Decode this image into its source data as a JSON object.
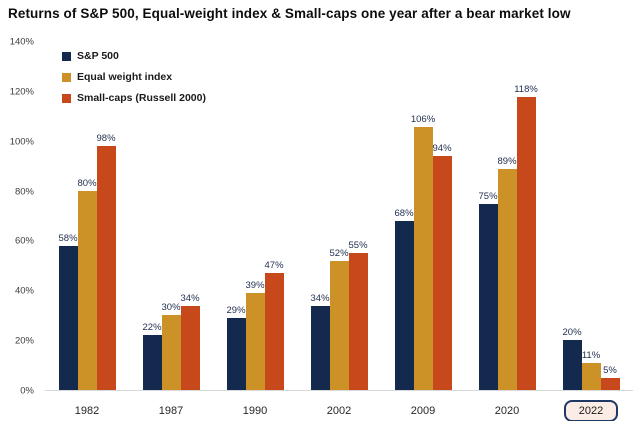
{
  "title": "Returns of S&P 500, Equal-weight index & Small-caps one year after a bear market low",
  "colors": {
    "sp500": "#14294e",
    "equal_weight": "#cc9228",
    "small_caps": "#c7481b",
    "highlight_border": "#1f3864",
    "highlight_fill": "#fbece5"
  },
  "chart_data": {
    "type": "bar",
    "title": "Returns of S&P 500, Equal-weight index & Small-caps one year after a bear market low",
    "categories": [
      "1982",
      "1987",
      "1990",
      "2002",
      "2009",
      "2020",
      "2022"
    ],
    "series": [
      {
        "name": "S&P 500",
        "color": "#14294e",
        "values": [
          58,
          22,
          29,
          34,
          68,
          75,
          20
        ]
      },
      {
        "name": "Equal weight index",
        "color": "#cc9228",
        "values": [
          80,
          30,
          39,
          52,
          106,
          89,
          11
        ]
      },
      {
        "name": "Small-caps (Russell 2000)",
        "color": "#c7481b",
        "values": [
          98,
          34,
          47,
          55,
          94,
          118,
          5
        ]
      }
    ],
    "value_suffix": "%",
    "xlabel": "",
    "ylabel": "",
    "ylim": [
      0,
      140
    ],
    "yticks": [
      0,
      20,
      40,
      60,
      80,
      100,
      120,
      140
    ],
    "ytick_suffix": "%",
    "grid": false,
    "legend_position": "top-left",
    "data_labels": true,
    "highlighted_category": "2022"
  }
}
